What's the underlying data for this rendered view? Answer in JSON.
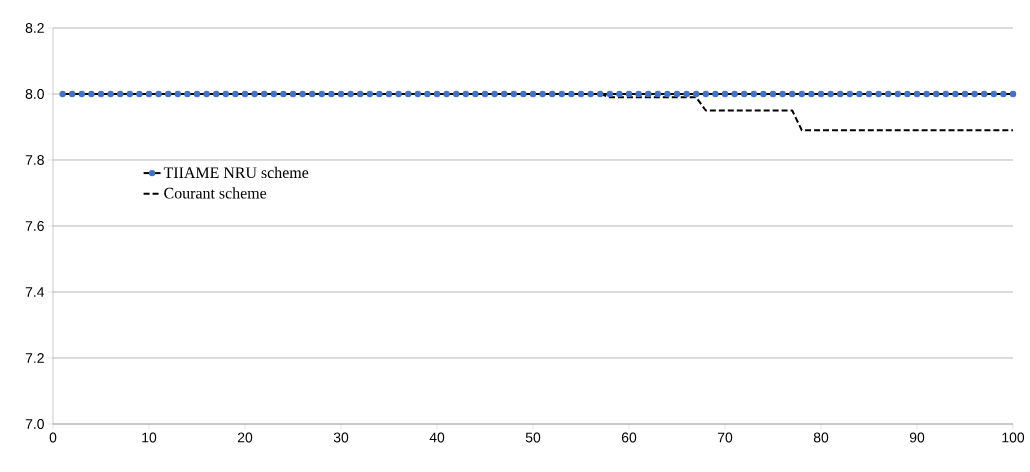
{
  "chart_data": {
    "type": "line",
    "series": [
      {
        "name": "TIIAME NRU scheme",
        "color": "#4472c4",
        "marker": "circle",
        "line_style": "solid",
        "x": [
          1,
          2,
          3,
          4,
          5,
          6,
          7,
          8,
          9,
          10,
          11,
          12,
          13,
          14,
          15,
          16,
          17,
          18,
          19,
          20,
          21,
          22,
          23,
          24,
          25,
          26,
          27,
          28,
          29,
          30,
          31,
          32,
          33,
          34,
          35,
          36,
          37,
          38,
          39,
          40,
          41,
          42,
          43,
          44,
          45,
          46,
          47,
          48,
          49,
          50,
          51,
          52,
          53,
          54,
          55,
          56,
          57,
          58,
          59,
          60,
          61,
          62,
          63,
          64,
          65,
          66,
          67,
          68,
          69,
          70,
          71,
          72,
          73,
          74,
          75,
          76,
          77,
          78,
          79,
          80,
          81,
          82,
          83,
          84,
          85,
          86,
          87,
          88,
          89,
          90,
          91,
          92,
          93,
          94,
          95,
          96,
          97,
          98,
          99,
          100
        ],
        "values": [
          8.0,
          8.0,
          8.0,
          8.0,
          8.0,
          8.0,
          8.0,
          8.0,
          8.0,
          8.0,
          8.0,
          8.0,
          8.0,
          8.0,
          8.0,
          8.0,
          8.0,
          8.0,
          8.0,
          8.0,
          8.0,
          8.0,
          8.0,
          8.0,
          8.0,
          8.0,
          8.0,
          8.0,
          8.0,
          8.0,
          8.0,
          8.0,
          8.0,
          8.0,
          8.0,
          8.0,
          8.0,
          8.0,
          8.0,
          8.0,
          8.0,
          8.0,
          8.0,
          8.0,
          8.0,
          8.0,
          8.0,
          8.0,
          8.0,
          8.0,
          8.0,
          8.0,
          8.0,
          8.0,
          8.0,
          8.0,
          8.0,
          8.0,
          8.0,
          8.0,
          8.0,
          8.0,
          8.0,
          8.0,
          8.0,
          8.0,
          8.0,
          8.0,
          8.0,
          8.0,
          8.0,
          8.0,
          8.0,
          8.0,
          8.0,
          8.0,
          8.0,
          8.0,
          8.0,
          8.0,
          8.0,
          8.0,
          8.0,
          8.0,
          8.0,
          8.0,
          8.0,
          8.0,
          8.0,
          8.0,
          8.0,
          8.0,
          8.0,
          8.0,
          8.0,
          8.0,
          8.0,
          8.0,
          8.0,
          8.0
        ]
      },
      {
        "name": "Courant scheme",
        "color": "#000000",
        "marker": "none",
        "line_style": "dashed",
        "x": [
          1,
          57,
          58,
          67,
          68,
          77,
          78,
          100
        ],
        "values": [
          8.0,
          8.0,
          7.99,
          7.99,
          7.95,
          7.95,
          7.89,
          7.89
        ]
      }
    ],
    "xlim": [
      0,
      100
    ],
    "xticks": [
      0,
      10,
      20,
      30,
      40,
      50,
      60,
      70,
      80,
      90,
      100
    ],
    "ylim": [
      7.0,
      8.2
    ],
    "yticks": [
      {
        "value": 7.0,
        "label": "7.0"
      },
      {
        "value": 7.2,
        "label": "7.2"
      },
      {
        "value": 7.4,
        "label": "7.4"
      },
      {
        "value": 7.6,
        "label": "7.6"
      },
      {
        "value": 7.8,
        "label": "7.8"
      },
      {
        "value": 8.0,
        "label": "8.0"
      },
      {
        "value": 8.2,
        "label": "8.2"
      }
    ],
    "grid": "y",
    "legend": "left"
  }
}
